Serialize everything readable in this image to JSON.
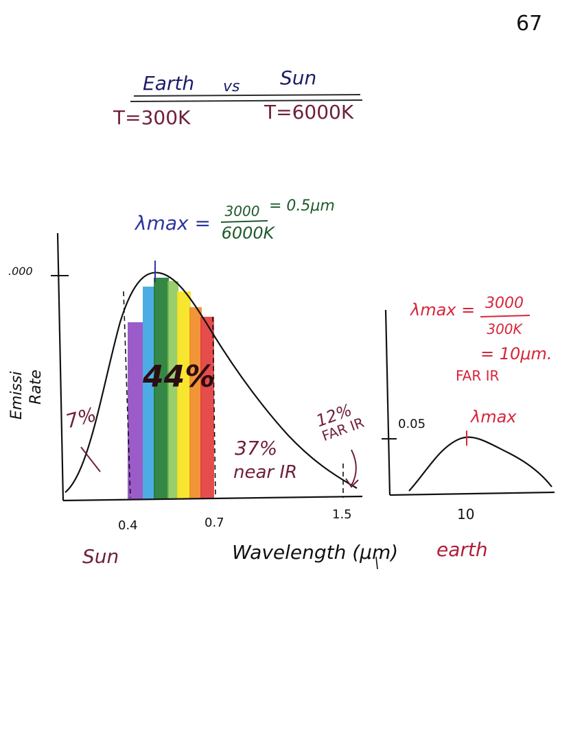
{
  "page_number": "67",
  "header": {
    "earth_label": "Earth",
    "vs_label": "vs",
    "sun_label": "Sun",
    "earth_temp": "T=300K",
    "sun_temp": "T=6000K"
  },
  "sun_formula": {
    "lhs": "λmax =",
    "numerator": "3000",
    "denominator": "6000K",
    "result": "= 0.5μm"
  },
  "sun_chart": {
    "y_tick_label": ".000",
    "y_axis_label_1": "Emissi",
    "y_axis_label_2": "Rate",
    "x_ticks": [
      "0.4",
      "0.7",
      "1.5"
    ],
    "x_axis_label": "Wavelength (μm)",
    "caption": "Sun",
    "pct_uv": "7%",
    "pct_visible": "44%",
    "pct_near_ir": "37%",
    "near_ir_label": "near IR",
    "pct_far_ir": "12%",
    "far_ir_label": "FAR IR"
  },
  "earth_formula": {
    "lhs": "λmax =",
    "numerator": "3000",
    "denominator": "300K",
    "result": "= 10μm.",
    "band": "FAR IR"
  },
  "earth_chart": {
    "y_tick_label": "0.05",
    "peak_label": "λmax",
    "x_tick_label": "10",
    "caption": "earth"
  },
  "colors": {
    "ink_maroon": "#6e1f3a",
    "ink_navy": "#1c1c6a",
    "ink_green": "#1d5a2c",
    "ink_red": "#d9243a",
    "band_violet": "#8a3fc0",
    "band_blue": "#2f9de0",
    "band_green": "#1f7a32",
    "band_yellow": "#f6e21a",
    "band_orange": "#f08a22",
    "band_red": "#e23a3a"
  }
}
